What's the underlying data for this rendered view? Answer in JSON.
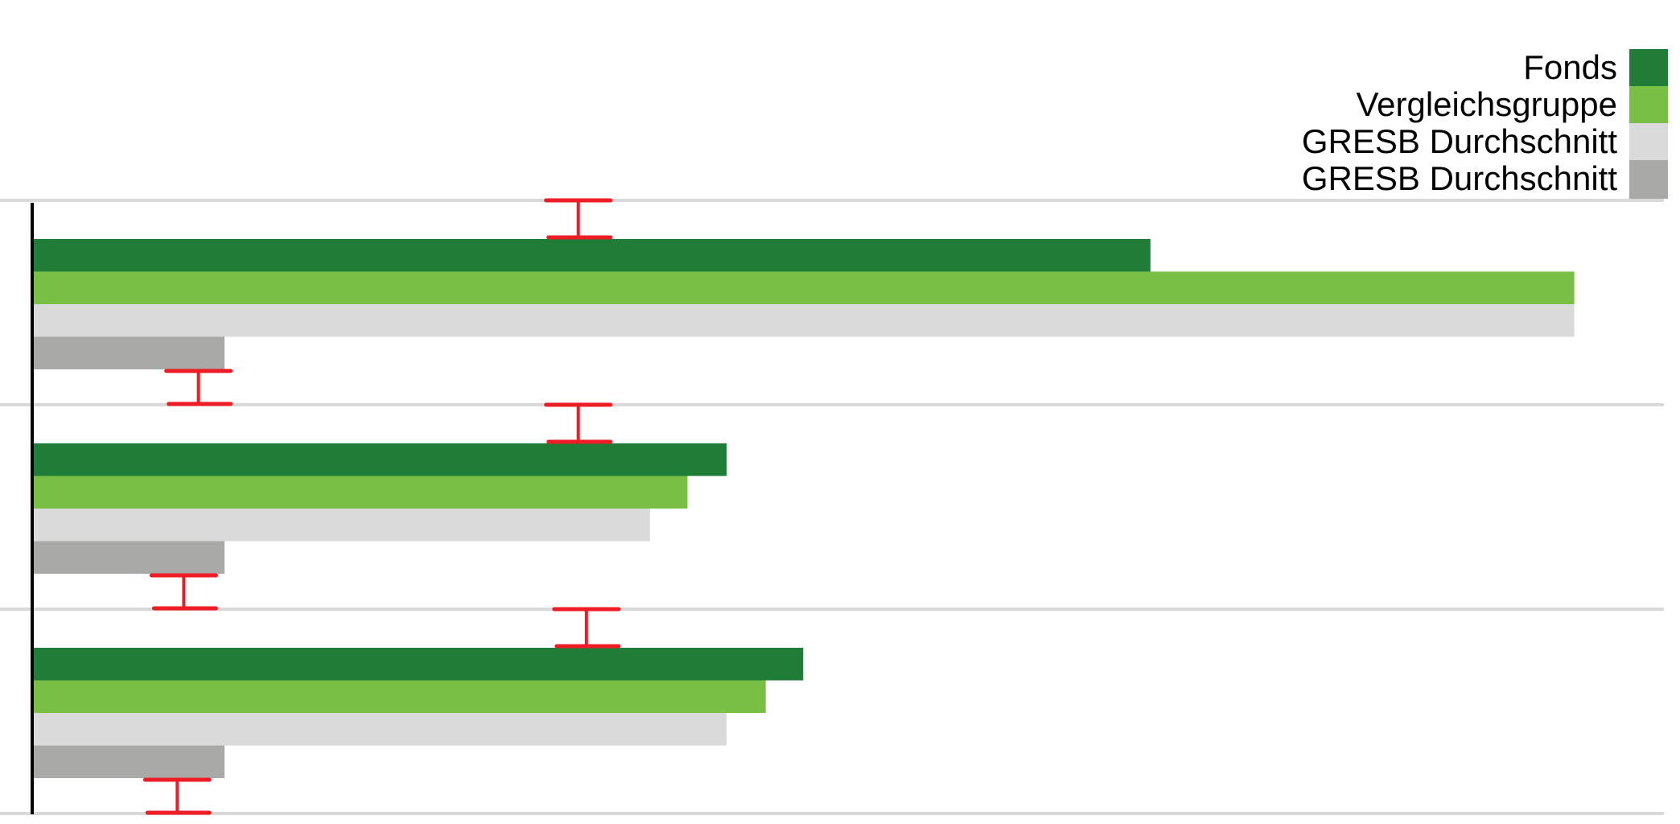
{
  "chart_data": {
    "type": "bar",
    "orientation": "horizontal",
    "title": "",
    "xlabel": "",
    "ylabel": "",
    "xlim": [
      0,
      100
    ],
    "grid": false,
    "legend_position": "top-right",
    "categories": [
      "",
      "",
      ""
    ],
    "series": [
      {
        "name": "Fonds",
        "color": "#207d38",
        "values": [
          68.6,
          42.6,
          47.3
        ]
      },
      {
        "name": "Vergleichsgruppe",
        "color": "#79bf45",
        "values": [
          94.6,
          40.2,
          45.0
        ]
      },
      {
        "name": "GRESB Durchschnitt",
        "color": "#dadada",
        "values": [
          94.6,
          37.9,
          42.6
        ]
      },
      {
        "name": "GRESB Durchschnitt",
        "color": "#a9a9a7",
        "values": [
          11.8,
          11.8,
          11.8
        ]
      }
    ],
    "markers": {
      "color": "#ee1c25",
      "upper": [
        33.5,
        33.5,
        34.0
      ],
      "lower": [
        10.2,
        9.3,
        8.9
      ]
    }
  }
}
